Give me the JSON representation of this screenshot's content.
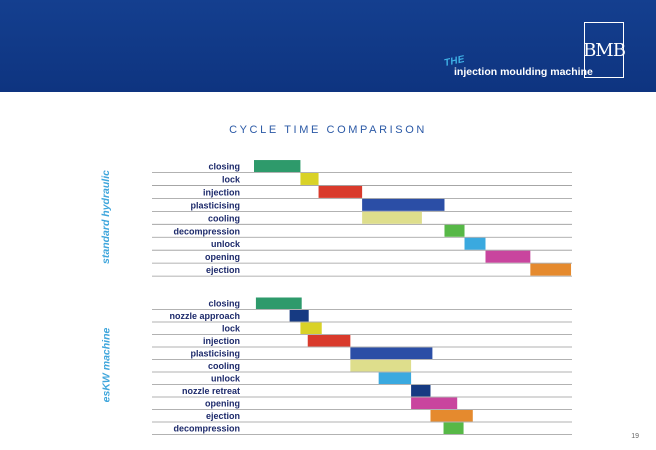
{
  "header": {
    "tagline_prefix": "THE",
    "tagline": "injection moulding machine",
    "logo": "BMB"
  },
  "colors": {
    "banner": "#123b8b",
    "title": "#2b59a6",
    "group_label": "#3fa6dc",
    "row_label": "#1d2a6b",
    "row_line": "#999999"
  },
  "chart_data": {
    "type": "gantt",
    "title": "CYCLE TIME COMPARISON",
    "time_scale": [
      0,
      100
    ],
    "groups": [
      {
        "name": "standard hydraulic",
        "tasks": [
          {
            "label": "closing",
            "start": 0.0,
            "end": 14.6,
            "color": "#2e9a6b"
          },
          {
            "label": "lock",
            "start": 14.6,
            "end": 20.3,
            "color": "#d9d227"
          },
          {
            "label": "injection",
            "start": 20.3,
            "end": 34.0,
            "color": "#d93a2b"
          },
          {
            "label": "plasticising",
            "start": 34.0,
            "end": 59.9,
            "color": "#2b4ea6"
          },
          {
            "label": "cooling",
            "start": 34.0,
            "end": 52.8,
            "color": "#dede8c"
          },
          {
            "label": "decompression",
            "start": 59.9,
            "end": 66.2,
            "color": "#57b847"
          },
          {
            "label": "unlock",
            "start": 66.2,
            "end": 72.8,
            "color": "#3aa9df"
          },
          {
            "label": "opening",
            "start": 72.8,
            "end": 86.9,
            "color": "#c9459e"
          },
          {
            "label": "ejection",
            "start": 86.9,
            "end": 99.7,
            "color": "#e58a2e"
          }
        ]
      },
      {
        "name": "esKW machine",
        "tasks": [
          {
            "label": "closing",
            "start": 0.6,
            "end": 15.0,
            "color": "#2e9a6b"
          },
          {
            "label": "nozzle approach",
            "start": 11.2,
            "end": 17.2,
            "color": "#163a82"
          },
          {
            "label": "lock",
            "start": 14.6,
            "end": 21.3,
            "color": "#d9d227"
          },
          {
            "label": "injection",
            "start": 16.9,
            "end": 30.3,
            "color": "#d93a2b"
          },
          {
            "label": "plasticising",
            "start": 30.3,
            "end": 56.1,
            "color": "#2b4ea6"
          },
          {
            "label": "cooling",
            "start": 30.3,
            "end": 49.4,
            "color": "#dede8c"
          },
          {
            "label": "unlock",
            "start": 39.2,
            "end": 49.4,
            "color": "#3aa9df"
          },
          {
            "label": "nozzle retreat",
            "start": 49.4,
            "end": 55.5,
            "color": "#163a82"
          },
          {
            "label": "opening",
            "start": 49.4,
            "end": 63.9,
            "color": "#c9459e"
          },
          {
            "label": "ejection",
            "start": 55.5,
            "end": 68.8,
            "color": "#e58a2e"
          },
          {
            "label": "decompression",
            "start": 59.6,
            "end": 65.9,
            "color": "#57b847"
          }
        ]
      }
    ]
  },
  "page_number": "19"
}
